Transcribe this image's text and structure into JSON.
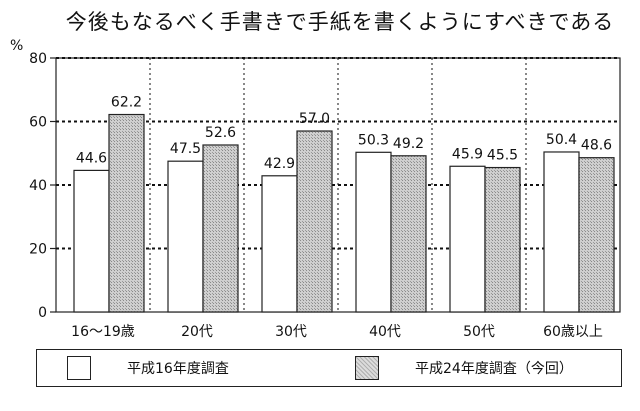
{
  "chart_data": {
    "type": "bar",
    "title": "今後もなるべく手書きで手紙を書くようにすべきである",
    "y_unit": "%",
    "ylim": [
      0,
      80
    ],
    "yticks": [
      0,
      20,
      40,
      60,
      80
    ],
    "categories": [
      "16～19歳",
      "20代",
      "30代",
      "40代",
      "50代",
      "60歳以上"
    ],
    "series": [
      {
        "name": "平成16年度調査",
        "values": [
          44.6,
          47.5,
          42.9,
          50.3,
          45.9,
          50.4
        ],
        "fill": "#ffffff"
      },
      {
        "name": "平成24年度調査（今回）",
        "values": [
          62.2,
          52.6,
          57.0,
          49.2,
          45.5,
          48.6
        ],
        "fill": "#c8c8c8"
      }
    ],
    "value_labels": [
      [
        "44.6",
        "47.5",
        "42.9",
        "50.3",
        "45.9",
        "50.4"
      ],
      [
        "62.2",
        "52.6",
        "57.0",
        "49.2",
        "45.5",
        "48.6"
      ]
    ],
    "gridlines": [
      20,
      40,
      60,
      80
    ],
    "legend_position": "bottom"
  }
}
